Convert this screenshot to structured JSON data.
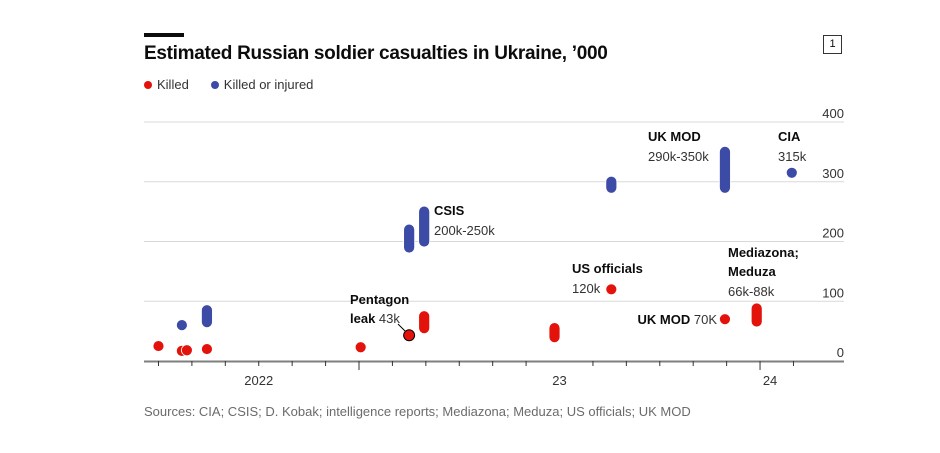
{
  "header": {
    "title": "Estimated Russian soldier casualties in Ukraine, ’000",
    "chart_number": "1"
  },
  "legend": [
    {
      "label": "Killed",
      "color": "#e3120b"
    },
    {
      "label": "Killed or injured",
      "color": "#3b4ba6"
    }
  ],
  "source": "Sources: CIA; CSIS; D. Kobak; intelligence reports; Mediazona; Meduza; US officials; UK MOD",
  "chart_data": {
    "type": "scatter",
    "title": "Estimated Russian soldier casualties in Ukraine, ’000",
    "xlabel": "",
    "ylabel": "",
    "x_units": "months since Jan 2022",
    "xlim": [
      5.8,
      25.2
    ],
    "ylim": [
      0,
      400
    ],
    "y_ticks": [
      0,
      100,
      200,
      300,
      400
    ],
    "y_tick_labels": [
      "0",
      "100",
      "200",
      "300",
      "400"
    ],
    "y_axis_position": "right",
    "grid": true,
    "x_year_labels": [
      {
        "label": "2022",
        "x": 9.0
      },
      {
        "label": "23",
        "x": 18.0
      },
      {
        "label": "24",
        "x": 24.3
      }
    ],
    "x_major_ticks": [
      12,
      24
    ],
    "x_minor_ticks": [
      6,
      7,
      8,
      9,
      10,
      11,
      13,
      14,
      15,
      16,
      17,
      19,
      20,
      21,
      22,
      23,
      25
    ],
    "legend_placement": "top-left",
    "series": [
      {
        "name": "Killed",
        "color": "#e3120b",
        "points": [
          {
            "x": 6.0,
            "low": 25,
            "high": 25
          },
          {
            "x": 6.7,
            "low": 17,
            "high": 17
          },
          {
            "x": 6.85,
            "low": 18,
            "high": 18
          },
          {
            "x": 7.45,
            "low": 20,
            "high": 20
          },
          {
            "x": 12.05,
            "low": 23,
            "high": 23
          },
          {
            "x": 13.5,
            "low": 43,
            "high": 43,
            "label_bold": "Pentagon",
            "label_bold2": "leak",
            "label_value": "43k",
            "outlined": true
          },
          {
            "x": 13.95,
            "low": 55,
            "high": 75
          },
          {
            "x": 17.85,
            "low": 40,
            "high": 55
          },
          {
            "x": 19.55,
            "low": 120,
            "high": 120,
            "label_bold": "US officials",
            "label_value": "120k"
          },
          {
            "x": 22.95,
            "low": 70,
            "high": 70,
            "label_bold": "UK MOD",
            "label_value": "70K"
          },
          {
            "x": 23.9,
            "low": 66,
            "high": 88,
            "label_bold": "Mediazona;",
            "label_bold2": "Meduza",
            "label_value": "66k-88k"
          }
        ]
      },
      {
        "name": "Killed or injured",
        "color": "#3b4ba6",
        "points": [
          {
            "x": 6.7,
            "low": 60,
            "high": 60
          },
          {
            "x": 7.45,
            "low": 65,
            "high": 85
          },
          {
            "x": 13.5,
            "low": 190,
            "high": 220
          },
          {
            "x": 13.95,
            "low": 200,
            "high": 250,
            "label_bold": "CSIS",
            "label_value": "200k-250k"
          },
          {
            "x": 19.55,
            "low": 290,
            "high": 300
          },
          {
            "x": 22.95,
            "low": 290,
            "high": 350,
            "label_bold": "UK MOD",
            "label_value": "290k-350k"
          },
          {
            "x": 24.95,
            "low": 315,
            "high": 315,
            "label_bold": "CIA",
            "label_value": "315k"
          }
        ]
      }
    ]
  }
}
